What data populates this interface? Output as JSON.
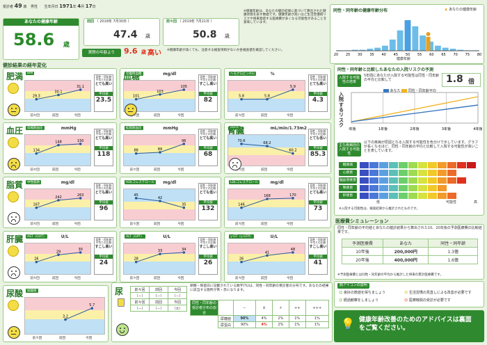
{
  "header": {
    "id_label": "受診者",
    "age": "49",
    "age_unit": "歳",
    "sex": "男性",
    "birth_label": "生年月日",
    "birth_year": "1971",
    "birth_month": "4",
    "birth_day": "17",
    "birth_y_unit": "年",
    "birth_m_unit": "月",
    "birth_d_unit": "日"
  },
  "health_age": {
    "title": "あなたの健康年齢",
    "value": "58.6",
    "unit": "歳",
    "diff_value": "9.6",
    "diff_unit": "歳",
    "diff_word": "高い",
    "diff_label": "実際の年齢より"
  },
  "previous": {
    "label": "前回",
    "date": "（ 2018年 7月30日 ）",
    "value": "47.4",
    "unit": "歳"
  },
  "before_prev": {
    "label": "前々回",
    "date": "（ 2019年 7月21日 ）",
    "value": "50.8",
    "unit": "歳"
  },
  "note1": "※健康年齢は、あなたの健診結果に基づいて算出された健康状態を表す数値です。健康年齢が高いほど生活習慣病リスクや将来発症する医療費が多くなる可能性があることを意味しています。",
  "note2": "※健康年齢が高くても、注意する検査項目がないか各検査値を確認してください。",
  "dist": {
    "title": "同性・同年齢の健康年齢分布",
    "legend": "あなたの健康年齢",
    "x_label": "健康年齢",
    "ticks": [
      "20",
      "25",
      "30",
      "35",
      "40",
      "45",
      "50",
      "55",
      "60",
      "65",
      "70",
      "75",
      "80"
    ],
    "person_label": "健康年齢",
    "person_value": "58.6歳"
  },
  "trend": {
    "title": "健診結果の経年変化",
    "xlabels": [
      "前々回",
      "前回",
      "今回"
    ],
    "judge_label": "同性・同年齢平均との比較",
    "avg_label": "平均値"
  },
  "items": [
    {
      "cat": "肥満",
      "name": "BMI",
      "unit": "",
      "vals": [
        "29.3",
        "30.1",
        "31.1"
      ],
      "judge": "とても高い",
      "avg": "23.5"
    },
    {
      "cat": "血糖",
      "name": "空腹時血糖",
      "unit": "mg/dl",
      "vals": [
        "101",
        "103",
        "105"
      ],
      "judge": "すこし高い",
      "avg": "82"
    },
    {
      "cat": "",
      "name": "ヘモグロビンA1c",
      "unit": "%",
      "vals": [
        "5.8",
        "5.8",
        "5.9"
      ],
      "judge": "とても高い",
      "avg": "4.3"
    },
    {
      "cat": "血圧",
      "name": "収縮期血圧",
      "unit": "mmHg",
      "vals": [
        "134",
        "148",
        "150"
      ],
      "judge": "とても高い",
      "avg": "118"
    },
    {
      "cat": "",
      "name": "拡張期血圧",
      "unit": "mmHg",
      "vals": [
        "88",
        "89",
        "96"
      ],
      "judge": "とても高い",
      "avg": "68"
    },
    {
      "cat": "腎臓",
      "name": "eGFR",
      "unit": "mL/min/1.73m2",
      "vals": [
        "70.6",
        "68.2",
        "60.2"
      ],
      "judge": "とても低い",
      "avg": "85.3"
    },
    {
      "cat": "脂質",
      "name": "中性脂肪",
      "unit": "mg/dl",
      "vals": [
        "167",
        "242",
        "263"
      ],
      "judge": "とても高い",
      "avg": "96"
    },
    {
      "cat": "",
      "name": "HDLコレステロール",
      "unit": "mg/dl",
      "vals": [
        "45",
        "42",
        "35"
      ],
      "judge": "とても低い",
      "avg": "132"
    },
    {
      "cat": "",
      "name": "LDLコレステロール",
      "unit": "mg/dl",
      "vals": [
        "146",
        "168",
        "170"
      ],
      "judge": "とても高い",
      "avg": "73"
    },
    {
      "cat": "肝臓",
      "name": "AST（GOT）",
      "unit": "U/L",
      "vals": [
        "26",
        "29",
        "30"
      ],
      "judge": "すこし高い",
      "avg": "24"
    },
    {
      "cat": "",
      "name": "ALT（GPT）",
      "unit": "U/L",
      "vals": [
        "28",
        "33",
        "34"
      ],
      "judge": "すこし高い",
      "avg": "26"
    },
    {
      "cat": "",
      "name": "γ-GT（γ-GTP）",
      "unit": "U/L",
      "vals": [
        "26",
        "41",
        "48"
      ],
      "judge": "すこし高い",
      "avg": "41"
    },
    {
      "cat": "尿酸",
      "name": "尿酸値",
      "unit": "",
      "vals": [
        "",
        "3.2",
        "5.7"
      ],
      "judge": "",
      "avg": ""
    }
  ],
  "urine": {
    "cat": "尿",
    "headers": [
      "前々回",
      "前回",
      "今回"
    ],
    "row1": [
      "（－）",
      "（－）",
      "（－）"
    ],
    "row2": [
      "（－）",
      "（－）",
      "（±）"
    ],
    "labels": [
      "尿蛋白",
      "尿糖"
    ],
    "note": "尿糖・尿蛋白に記載されている数字(%)は、同性・同年齢の受診者の分布です。あなたの結果に該当する箇所が青・赤になります。",
    "dist_header": [
      "－",
      "±",
      "＋",
      "++",
      "+++"
    ],
    "dist_label": "同性・同年齢の受診者分布の割合",
    "r1": [
      "90%",
      "4%",
      "2%",
      "1%",
      "1%"
    ],
    "r2": [
      "90%",
      "4%",
      "2%",
      "1%",
      "1%"
    ],
    "r1_name": "尿糖値",
    "r2_name": "尿蛋白"
  },
  "risk": {
    "title": "同性・同年齢と比較したあなたの入院リスクの予測",
    "box_label": "入院する可能性の倍率",
    "text": "5年間にあなたが入院する可能性は同性・同年齢の平均と比較して",
    "value": "1.8",
    "unit": "倍",
    "axis_label": "入院するリスク",
    "years": [
      "0年後",
      "1年後",
      "2年後",
      "3年後",
      "4年後"
    ],
    "leg1": "あなた",
    "leg2": "同性・同年齢平均"
  },
  "disease": {
    "box_label": "主な疾病別の入院する可能性",
    "text": "以下の疾病が原因となる入院する可能性を色分けで示しています。グラフが長くなるほど、同性・同年齢の平均と比較して入院する可能性が高いことを表しています。",
    "rows": [
      "糖尿病",
      "心疾患",
      "脳血管疾患",
      "腎疾患",
      "肝疾患"
    ],
    "scale": "可能性",
    "low": "低",
    "high": "高",
    "note": "※入院する可能性は、検査結果から推計されたものです。"
  },
  "medical": {
    "title": "医療費シミュレーション",
    "text": "同性・同年齢の平均値とあなたの健診結果から算出された10、20年後の予測医療費の比較結果です。",
    "headers": [
      "予測医療費",
      "あなた",
      "同性・同年齢"
    ],
    "rows": [
      [
        "10年後",
        "200,000円",
        "1.3億"
      ],
      [
        "20年後",
        "400,000円",
        "1.6億"
      ]
    ],
    "note": "※予測医療費とは同性・同年齢の平均から推計した将来の累計医療費です。"
  },
  "icons": {
    "title": "顔アイコンの説明",
    "i1": "良好の数値を保ちましょう",
    "i2": "生活習慣の見直しによる改善が必要です",
    "i3": "経過観察をしましょう",
    "i4": "医療機関の受診が必要です"
  },
  "advice": {
    "text": "健康年齢改善のためのアドバイスは裏面をご覧ください。"
  },
  "colors": {
    "green": "#2f8a2f",
    "red": "#e0301e",
    "pink": "#f8cdd2",
    "yellow": "#fbf0a8",
    "blue": "#bfe0f5"
  }
}
